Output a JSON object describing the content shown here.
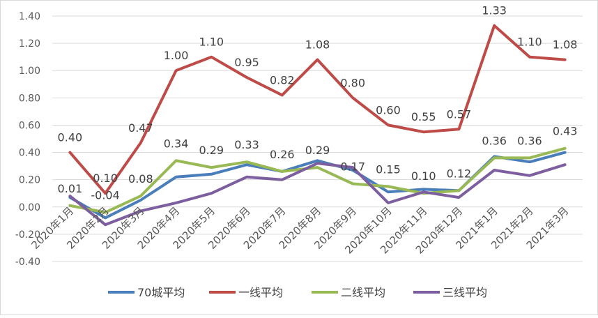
{
  "chart_data": {
    "type": "line",
    "categories": [
      "2020年1月",
      "2020年2月",
      "2020年3月",
      "2020年4月",
      "2020年5月",
      "2020年6月",
      "2020年7月",
      "2020年8月",
      "2020年9月",
      "2020年10月",
      "2020年11月",
      "2020年12月",
      "2021年1月",
      "2021年2月",
      "2021年3月"
    ],
    "ylim": [
      -0.4,
      1.4
    ],
    "yticks": [
      "-0.40",
      "-0.20",
      "0.00",
      "0.20",
      "0.40",
      "0.60",
      "0.80",
      "1.00",
      "1.20",
      "1.40"
    ],
    "grid": true,
    "legend_position": "bottom",
    "series": [
      {
        "name": "70城平均",
        "color": "#4a7ebb",
        "values": [
          0.07,
          -0.08,
          0.05,
          0.22,
          0.24,
          0.31,
          0.26,
          0.34,
          0.27,
          0.11,
          0.13,
          0.12,
          0.37,
          0.33,
          0.4
        ],
        "labels": []
      },
      {
        "name": "一线平均",
        "color": "#be4b48",
        "values": [
          0.4,
          0.1,
          0.47,
          1.0,
          1.1,
          0.95,
          0.82,
          1.08,
          0.8,
          0.6,
          0.55,
          0.57,
          1.33,
          1.1,
          1.08
        ],
        "labels": [
          "0.40",
          "0.10",
          "0.47",
          "1.00",
          "1.10",
          "0.95",
          "0.82",
          "1.08",
          "0.80",
          "0.60",
          "0.55",
          "0.57",
          "1.33",
          "1.10",
          "1.08"
        ]
      },
      {
        "name": "二线平均",
        "color": "#98b954",
        "values": [
          0.01,
          -0.04,
          0.08,
          0.34,
          0.29,
          0.33,
          0.26,
          0.29,
          0.17,
          0.15,
          0.1,
          0.12,
          0.36,
          0.36,
          0.43
        ],
        "labels": [
          "0.01",
          "-0.04",
          "0.08",
          "0.34",
          "0.29",
          "0.33",
          "0.26",
          "0.29",
          "0.17",
          "0.15",
          "0.10",
          "0.12",
          "0.36",
          "0.36",
          "0.43"
        ]
      },
      {
        "name": "三线平均",
        "color": "#7d5fa0",
        "values": [
          0.08,
          -0.13,
          -0.03,
          0.03,
          0.1,
          0.22,
          0.2,
          0.32,
          0.29,
          0.03,
          0.11,
          0.07,
          0.27,
          0.23,
          0.31
        ],
        "labels": []
      }
    ]
  }
}
